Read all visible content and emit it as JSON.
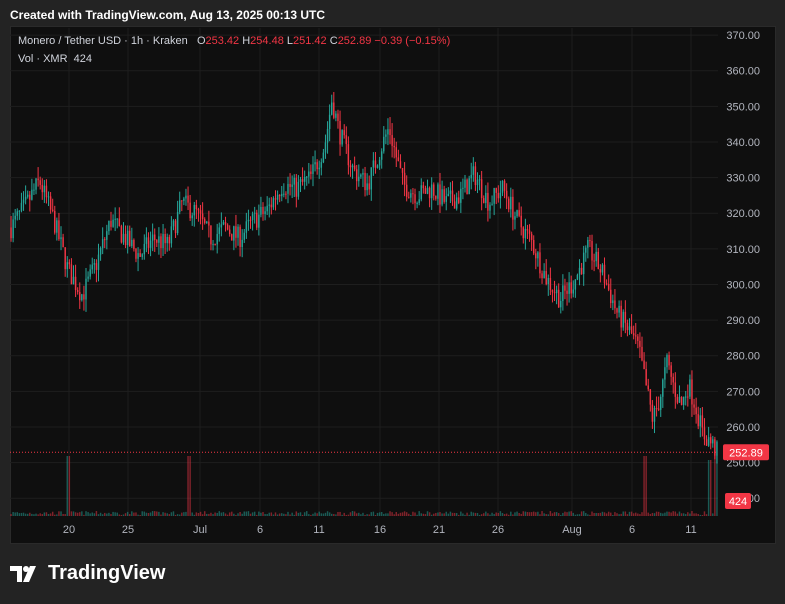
{
  "header": {
    "created": "Created with TradingView.com, Aug 13, 2025 00:13 UTC"
  },
  "legend": {
    "symbol": "Monero / Tether USD · 1h · Kraken",
    "o_label": "O",
    "o_value": "253.42",
    "h_label": "H",
    "h_value": "254.48",
    "l_label": "L",
    "l_value": "251.42",
    "c_label": "C",
    "c_value": "252.89",
    "change": "−0.39 (−0.15%)",
    "vol_label": "Vol · XMR",
    "vol_value": "424"
  },
  "brand": {
    "name": "TradingView"
  },
  "colors": {
    "up": "#26a69a",
    "down": "#f23645",
    "grid": "#1e1e1e",
    "bg": "#0f0f0f",
    "axis_text": "#b2b5be"
  },
  "chart_data": {
    "type": "candlestick",
    "title": "Monero / Tether USD · 1h · Kraken",
    "ylim": [
      235,
      372
    ],
    "y_ticks": [
      "370.00",
      "360.00",
      "350.00",
      "340.00",
      "330.00",
      "320.00",
      "310.00",
      "300.00",
      "290.00",
      "280.00",
      "270.00",
      "260.00",
      "250.00",
      "240.00"
    ],
    "x_ticks": [
      "20",
      "25",
      "Jul",
      "6",
      "11",
      "16",
      "21",
      "26",
      "Aug",
      "6",
      "11"
    ],
    "last_price": "252.89",
    "last_volume": "424",
    "grid": true,
    "price_path": [
      [
        0,
        316
      ],
      [
        2,
        322
      ],
      [
        4,
        329
      ],
      [
        6,
        318
      ],
      [
        8,
        304
      ],
      [
        10,
        297
      ],
      [
        12,
        306
      ],
      [
        14,
        318
      ],
      [
        16,
        313
      ],
      [
        18,
        308
      ],
      [
        20,
        313
      ],
      [
        22,
        311
      ],
      [
        24,
        323
      ],
      [
        26,
        320
      ],
      [
        28,
        313
      ],
      [
        30,
        316
      ],
      [
        32,
        313
      ],
      [
        34,
        318
      ],
      [
        36,
        321
      ],
      [
        38,
        328
      ],
      [
        40,
        327
      ],
      [
        42,
        330
      ],
      [
        44,
        339
      ],
      [
        45,
        352
      ],
      [
        46,
        343
      ],
      [
        48,
        332
      ],
      [
        50,
        328
      ],
      [
        52,
        339
      ],
      [
        53,
        344
      ],
      [
        55,
        328
      ],
      [
        57,
        325
      ],
      [
        59,
        327
      ],
      [
        61,
        323
      ],
      [
        63,
        325
      ],
      [
        65,
        331
      ],
      [
        67,
        323
      ],
      [
        69,
        327
      ],
      [
        71,
        318
      ],
      [
        73,
        312
      ],
      [
        75,
        302
      ],
      [
        77,
        296
      ],
      [
        79,
        301
      ],
      [
        81,
        310
      ],
      [
        83,
        303
      ],
      [
        85,
        292
      ],
      [
        87,
        286
      ],
      [
        88,
        282
      ],
      [
        89,
        272
      ],
      [
        90,
        262
      ],
      [
        91,
        268
      ],
      [
        92,
        278
      ],
      [
        93,
        271
      ],
      [
        94,
        266
      ],
      [
        95,
        272
      ],
      [
        96,
        266
      ],
      [
        97,
        258
      ],
      [
        98,
        256
      ],
      [
        99,
        253
      ]
    ],
    "volume_spikes": [
      [
        8,
        245
      ],
      [
        25,
        246
      ],
      [
        89,
        250
      ],
      [
        98,
        260
      ],
      [
        99,
        255
      ]
    ]
  }
}
